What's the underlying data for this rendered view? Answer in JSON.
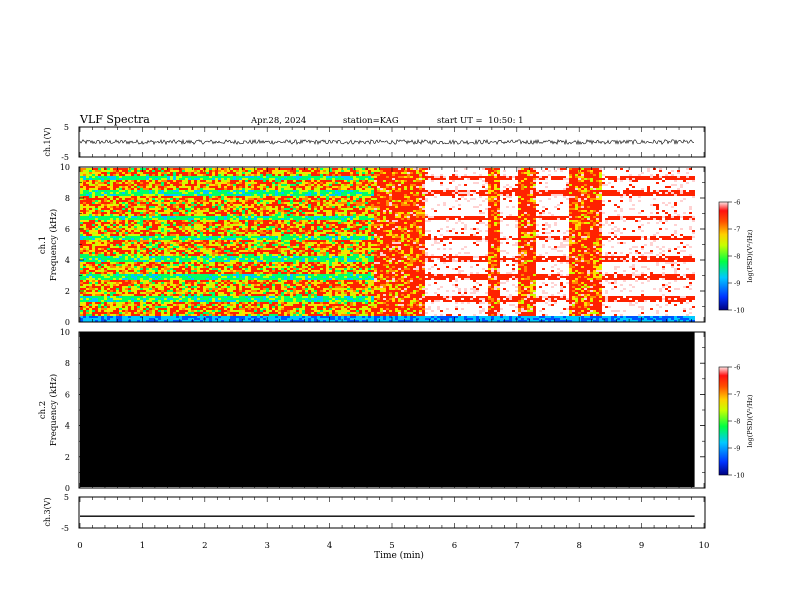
{
  "header": {
    "title": "VLF Spectra",
    "date": "Apr.28, 2024",
    "station": "station=KAG",
    "start": "start UT =  10:50: 1"
  },
  "colors": {
    "background": "#ffffff",
    "trace": "#000000",
    "colormap": [
      "#0000aa",
      "#0055ff",
      "#00c8ff",
      "#00ff66",
      "#c8ff00",
      "#ffe000",
      "#ff8800",
      "#ff2200",
      "#ffd2d2"
    ]
  },
  "chart_data": [
    {
      "type": "line",
      "panel": "ch1-waveform",
      "ylabel": "ch.1(V)",
      "ylim": [
        -5,
        5
      ],
      "yticks": [
        "5",
        "-5"
      ],
      "description_values": {
        "mean": 0,
        "amplitude": 0.8
      },
      "xlim": [
        0,
        10
      ]
    },
    {
      "type": "heatmap",
      "panel": "ch1-spectrogram",
      "ylabel": "ch.1\nFrequency (kHz)",
      "ylabel_line1": "ch.1",
      "ylabel_line2": "Frequency (kHz)",
      "ylim": [
        0,
        10
      ],
      "yticks": [
        "0",
        "2",
        "4",
        "6",
        "8",
        "10"
      ],
      "xlim": [
        0,
        10
      ],
      "data_extent_min": 9.85,
      "quiet_segments_min": [
        [
          5.5,
          6.5
        ],
        [
          6.7,
          7.0
        ],
        [
          7.3,
          7.8
        ],
        [
          8.35,
          9.85
        ]
      ],
      "bands_khz": [
        0.2,
        1.5,
        2.9,
        4.1,
        5.5,
        6.8,
        8.4,
        9.4
      ],
      "colorbar": {
        "label": "log(PSD)(V²/Hz)",
        "ticks": [
          "-6",
          "-7",
          "-8",
          "-9",
          "-10"
        ],
        "range": [
          -10,
          -6
        ]
      }
    },
    {
      "type": "heatmap",
      "panel": "ch2-spectrogram",
      "ylabel_line1": "ch.2",
      "ylabel_line2": "Frequency (kHz)",
      "ylim": [
        0,
        10
      ],
      "yticks": [
        "0",
        "2",
        "4",
        "6",
        "8",
        "10"
      ],
      "xlim": [
        0,
        10
      ],
      "data_extent_min": 9.85,
      "fill": "#000000",
      "colorbar": {
        "label": "log(PSD)(V²/Hz)",
        "ticks": [
          "-6",
          "-7",
          "-8",
          "-9",
          "-10"
        ],
        "range": [
          -10,
          -6
        ]
      }
    },
    {
      "type": "line",
      "panel": "ch3-waveform",
      "ylabel": "ch.3(V)",
      "ylim": [
        -5,
        5
      ],
      "yticks": [
        "5",
        "-5"
      ],
      "constant_value": -1.5,
      "xlim": [
        0,
        10
      ],
      "xlabel": "Time (min)",
      "xticks": [
        "0",
        "1",
        "2",
        "3",
        "4",
        "5",
        "6",
        "7",
        "8",
        "9",
        "10"
      ]
    }
  ]
}
